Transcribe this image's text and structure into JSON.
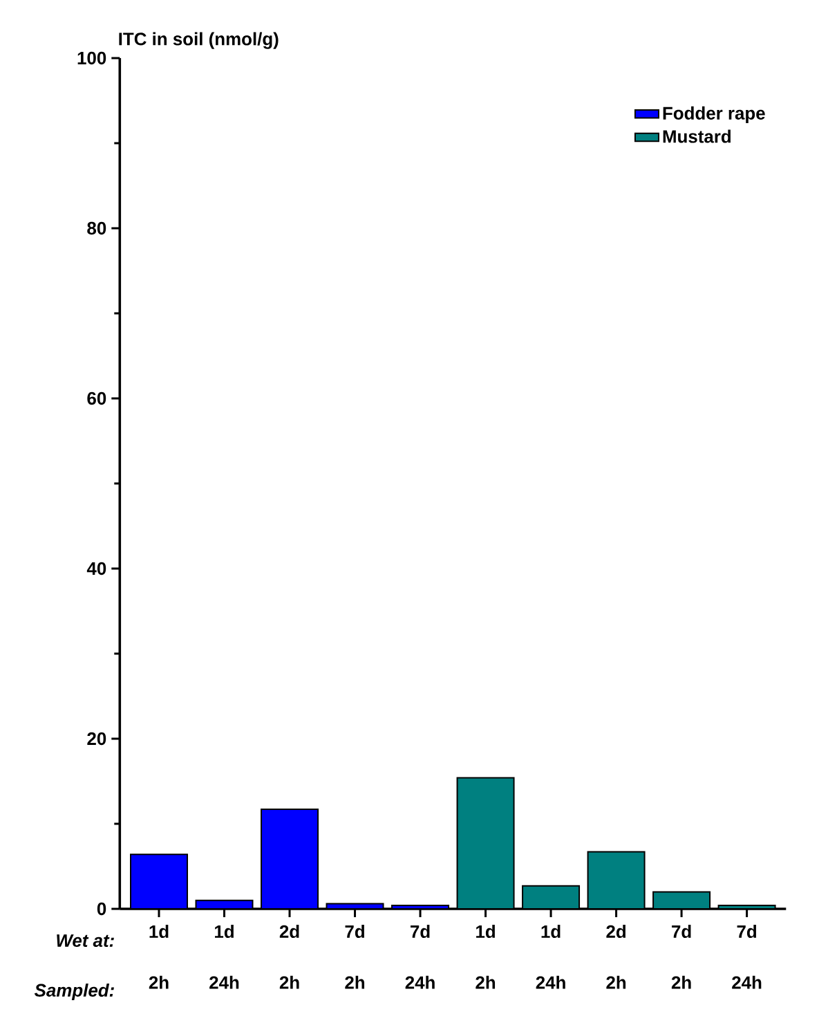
{
  "chart_data": {
    "type": "bar",
    "ylabel": "ITC in soil (nmol/g)",
    "categories": [
      "1d 2h",
      "1d 24h",
      "2d 2h",
      "7d 2h",
      "7d 24h",
      "1d 2h",
      "1d 24h",
      "2d 2h",
      "7d 2h",
      "7d 24h"
    ],
    "series": [
      {
        "name": "Fodder rape",
        "color": "#0000ff",
        "values": [
          6.4,
          1.0,
          11.7,
          0.6,
          0.4,
          null,
          null,
          null,
          null,
          null
        ]
      },
      {
        "name": "Mustard",
        "color": "#008080",
        "values": [
          null,
          null,
          null,
          null,
          null,
          15.4,
          2.7,
          6.7,
          2.0,
          0.4
        ]
      }
    ],
    "ylim": [
      0,
      100
    ],
    "yticks": [
      0,
      20,
      40,
      60,
      80,
      100
    ],
    "grid": false,
    "legend": "top right",
    "annotations": [
      "Wet at:",
      "Sampled:"
    ]
  }
}
